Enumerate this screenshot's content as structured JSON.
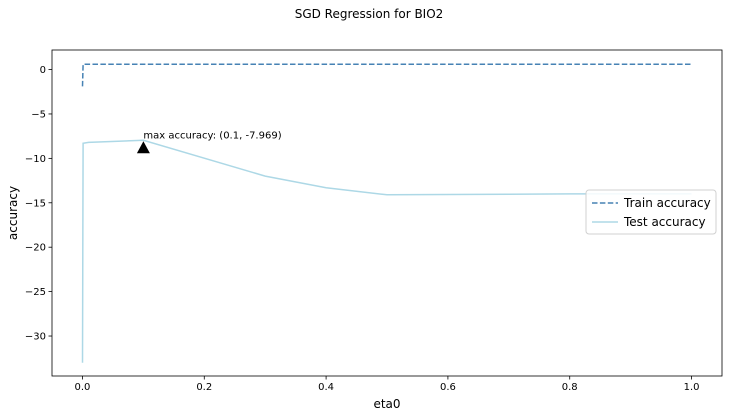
{
  "figure": {
    "suptitle": "SGD Regression for BIO2"
  },
  "chart_data": {
    "type": "line",
    "title": "SGD Regression for BIO2",
    "xlabel": "eta0",
    "ylabel": "accuracy",
    "xlim": [
      -0.05,
      1.05
    ],
    "ylim": [
      -34.5,
      2.2
    ],
    "xticks": [
      0.0,
      0.2,
      0.4,
      0.6,
      0.8,
      1.0
    ],
    "xtick_labels": [
      "0.0",
      "0.2",
      "0.4",
      "0.6",
      "0.8",
      "1.0"
    ],
    "yticks": [
      0,
      -5,
      -10,
      -15,
      -20,
      -25,
      -30
    ],
    "ytick_labels": [
      "0",
      "−5",
      "−10",
      "−15",
      "−20",
      "−25",
      "−30"
    ],
    "grid": false,
    "legend_position": "center-right",
    "series": [
      {
        "name": "Train accuracy",
        "style": "dashed",
        "color": "#4682b4",
        "x": [
          0.0001,
          0.001,
          0.01,
          0.1,
          0.3,
          0.4,
          0.5,
          0.8,
          1.0
        ],
        "y": [
          -1.9,
          0.6,
          0.6,
          0.6,
          0.6,
          0.6,
          0.6,
          0.6,
          0.6
        ]
      },
      {
        "name": "Test accuracy",
        "style": "solid",
        "color": "#add8e6",
        "x": [
          0.0001,
          0.001,
          0.01,
          0.1,
          0.3,
          0.4,
          0.5,
          0.8,
          1.0
        ],
        "y": [
          -33.0,
          -8.3,
          -8.2,
          -7.969,
          -12.0,
          -13.3,
          -14.1,
          -14.0,
          -14.0
        ]
      }
    ],
    "annotation": {
      "text": "max accuracy: (0.1, -7.969)",
      "x": 0.1,
      "y": -7.969,
      "marker": "triangle-up",
      "marker_color": "#000000"
    }
  }
}
